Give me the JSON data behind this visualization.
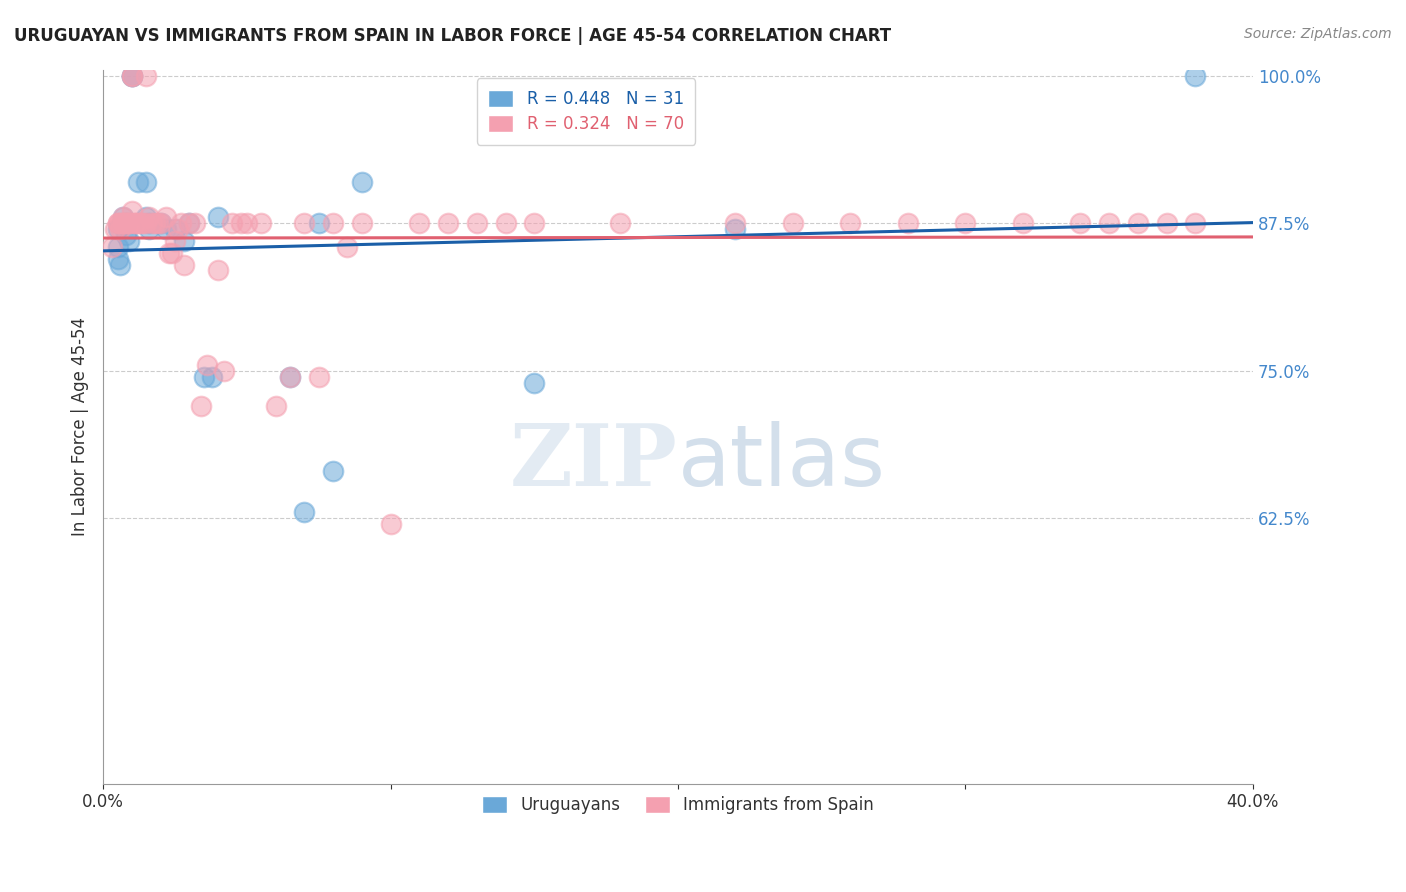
{
  "title": "URUGUAYAN VS IMMIGRANTS FROM SPAIN IN LABOR FORCE | AGE 45-54 CORRELATION CHART",
  "source": "Source: ZipAtlas.com",
  "xlabel": "",
  "ylabel": "In Labor Force | Age 45-54",
  "xlim": [
    0.0,
    0.4
  ],
  "ylim": [
    0.4,
    1.005
  ],
  "yticks": [
    1.0,
    0.875,
    0.75,
    0.625
  ],
  "ytick_labels": [
    "100.0%",
    "87.5%",
    "75.0%",
    "62.5%"
  ],
  "xticks": [
    0.0,
    0.1,
    0.2,
    0.3,
    0.4
  ],
  "xtick_labels": [
    "0.0%",
    "",
    "",
    "",
    "40.0%"
  ],
  "blue_R": 0.448,
  "blue_N": 31,
  "pink_R": 0.324,
  "pink_N": 70,
  "blue_color": "#6aa8d8",
  "pink_color": "#f4a0b0",
  "blue_line_color": "#1a5fa8",
  "pink_line_color": "#e06070",
  "watermark_zip_color": "#c8d8e8",
  "watermark_atlas_color": "#a8c0d8",
  "blue_x": [
    0.005,
    0.005,
    0.005,
    0.006,
    0.007,
    0.008,
    0.008,
    0.009,
    0.01,
    0.01,
    0.012,
    0.015,
    0.015,
    0.016,
    0.016,
    0.02,
    0.022,
    0.025,
    0.028,
    0.03,
    0.035,
    0.038,
    0.04,
    0.065,
    0.07,
    0.075,
    0.08,
    0.09,
    0.15,
    0.22,
    0.38
  ],
  "blue_y": [
    0.87,
    0.855,
    0.845,
    0.84,
    0.88,
    0.875,
    0.865,
    0.86,
    1.0,
    1.0,
    0.91,
    0.91,
    0.88,
    0.875,
    0.87,
    0.875,
    0.87,
    0.87,
    0.86,
    0.875,
    0.745,
    0.745,
    0.88,
    0.745,
    0.63,
    0.875,
    0.665,
    0.91,
    0.74,
    0.87,
    1.0
  ],
  "pink_x": [
    0.003,
    0.004,
    0.005,
    0.005,
    0.006,
    0.006,
    0.007,
    0.007,
    0.007,
    0.008,
    0.008,
    0.009,
    0.009,
    0.01,
    0.01,
    0.01,
    0.011,
    0.011,
    0.012,
    0.013,
    0.014,
    0.015,
    0.015,
    0.016,
    0.017,
    0.018,
    0.019,
    0.02,
    0.022,
    0.023,
    0.024,
    0.025,
    0.026,
    0.027,
    0.028,
    0.03,
    0.032,
    0.034,
    0.036,
    0.04,
    0.042,
    0.045,
    0.048,
    0.05,
    0.055,
    0.06,
    0.065,
    0.07,
    0.075,
    0.08,
    0.085,
    0.09,
    0.1,
    0.11,
    0.12,
    0.13,
    0.14,
    0.15,
    0.18,
    0.22,
    0.24,
    0.26,
    0.28,
    0.3,
    0.32,
    0.34,
    0.35,
    0.36,
    0.37,
    0.38
  ],
  "pink_y": [
    0.855,
    0.87,
    0.875,
    0.875,
    0.87,
    0.875,
    0.875,
    0.875,
    0.88,
    0.875,
    0.875,
    0.875,
    0.875,
    1.0,
    1.0,
    0.885,
    0.875,
    0.875,
    0.875,
    0.875,
    0.875,
    1.0,
    0.875,
    0.88,
    0.875,
    0.875,
    0.875,
    0.875,
    0.88,
    0.85,
    0.85,
    0.86,
    0.87,
    0.875,
    0.84,
    0.875,
    0.875,
    0.72,
    0.755,
    0.835,
    0.75,
    0.875,
    0.875,
    0.875,
    0.875,
    0.72,
    0.745,
    0.875,
    0.745,
    0.875,
    0.855,
    0.875,
    0.62,
    0.875,
    0.875,
    0.875,
    0.875,
    0.875,
    0.875,
    0.875,
    0.875,
    0.875,
    0.875,
    0.875,
    0.875,
    0.875,
    0.875,
    0.875,
    0.875,
    0.875
  ],
  "legend_blue_label": "R = 0.448   N = 31",
  "legend_pink_label": "R = 0.324   N = 70",
  "legend_label_blue": "Uruguayans",
  "legend_label_pink": "Immigrants from Spain"
}
